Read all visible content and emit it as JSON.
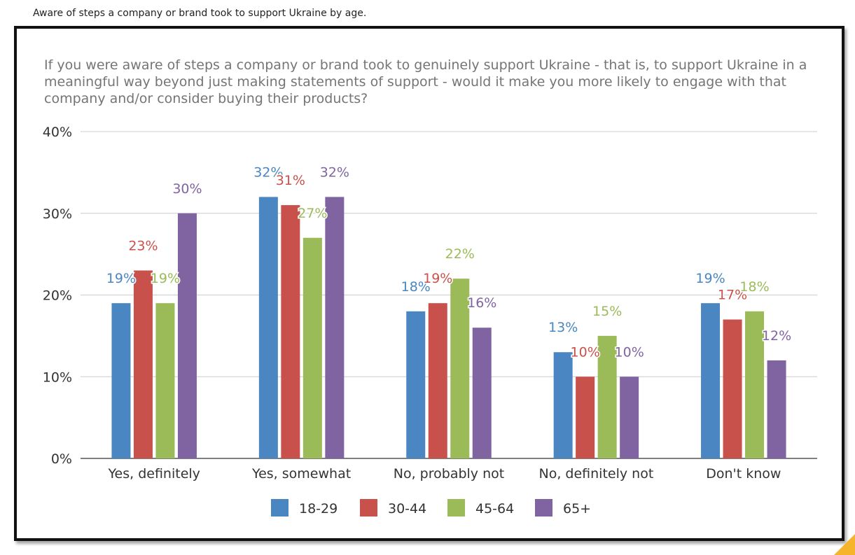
{
  "page": {
    "caption": "Aware of steps a company or brand took to support Ukraine by age."
  },
  "chart_data": {
    "type": "bar",
    "title": "If you were aware of steps a company or brand took to genuinely support Ukraine - that is, to support Ukraine in a meaningful way beyond just making statements of support - would it make you more likely to engage with that company and/or consider buying their products?",
    "categories": [
      "Yes, definitely",
      "Yes, somewhat",
      "No, probably not",
      "No, definitely not",
      "Don't know"
    ],
    "series": [
      {
        "name": "18-29",
        "color": "#4a86c1",
        "values": [
          19,
          32,
          18,
          13,
          19
        ],
        "labels": [
          "19%",
          "32%",
          "18%",
          "13%",
          "19%"
        ]
      },
      {
        "name": "30-44",
        "color": "#c8514c",
        "values": [
          23,
          31,
          19,
          10,
          17
        ],
        "labels": [
          "23%",
          "31%",
          "19%",
          "10%",
          "17%"
        ]
      },
      {
        "name": "45-64",
        "color": "#9bbb59",
        "values": [
          19,
          27,
          22,
          15,
          18
        ],
        "labels": [
          "19%",
          "27%",
          "22%",
          "15%",
          "18%"
        ]
      },
      {
        "name": "65+",
        "color": "#8064a2",
        "values": [
          30,
          32,
          16,
          10,
          12
        ],
        "labels": [
          "30%",
          "32%",
          "16%",
          "10%",
          "12%"
        ]
      }
    ],
    "ylim": [
      0,
      40
    ],
    "yticks": [
      "0%",
      "10%",
      "20%",
      "30%",
      "40%"
    ],
    "xlabel": "",
    "ylabel": "",
    "grid": true,
    "legend": "bottom"
  }
}
